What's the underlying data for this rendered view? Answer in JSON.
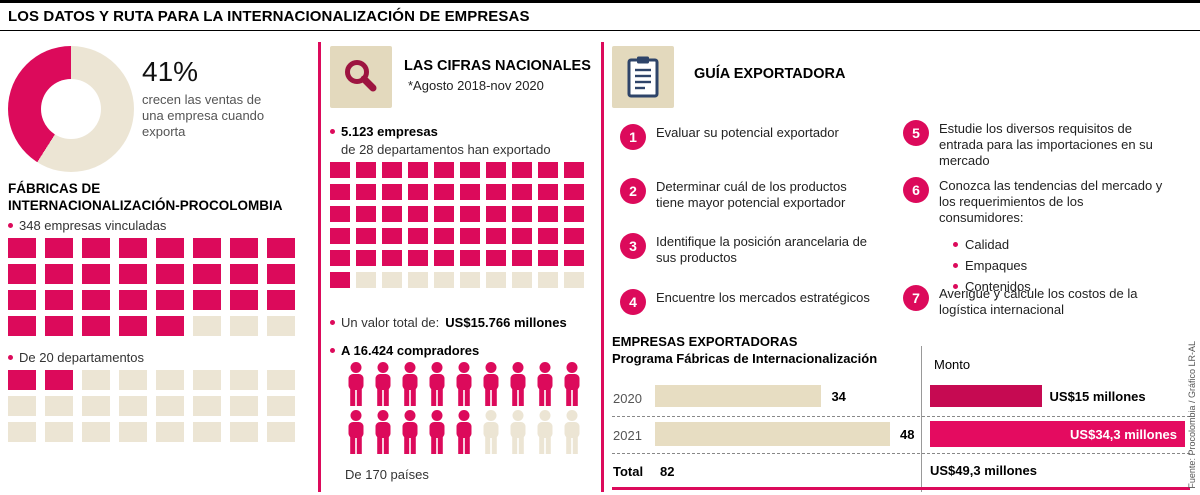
{
  "colors": {
    "pink": "#dc0a5b",
    "cream": "#ece5d4",
    "tan": "#e3d9bd",
    "tan-bar": "#e7ddc2",
    "bar-dark": "#c60a52",
    "bar-bright": "#e40b60",
    "navy": "#2e4469",
    "dark-red": "#9d1440"
  },
  "title": "LOS DATOS Y RUTA PARA LA INTERNACIONALIZACIÓN DE EMPRESAS",
  "left": {
    "donut": {
      "pct": 41,
      "pct_label": "41%",
      "caption": "crecen las ventas de\nuna empresa cuando\nexporta"
    },
    "section_title": "FÁBRICAS DE\nINTERNACIONALIZACIÓN-PROCOLOMBIA",
    "stat1": {
      "label": "348 empresas vinculadas",
      "waffle": {
        "cols": 8,
        "filled": 29,
        "total": 32
      }
    },
    "stat2": {
      "label": "De 20 departamentos",
      "waffle": {
        "cols": 8,
        "filled": 2,
        "total": 24
      }
    }
  },
  "middle": {
    "header": "LAS CIFRAS NACIONALES",
    "subheader": "*Agosto 2018-nov 2020",
    "stat1_bold": "5.123 empresas",
    "stat1_rest": "de 28 departamentos han exportado",
    "waffle": {
      "cols": 10,
      "filled": 51,
      "total": 60
    },
    "stat2_pre": "Un valor total de: ",
    "stat2_bold": "US$15.766 millones",
    "stat3": "A 16.424 compradores",
    "people": {
      "per_row": 9,
      "filled": 14,
      "total": 18
    },
    "footer": "De 170 países"
  },
  "right": {
    "header": "GUÍA EXPORTADORA",
    "steps": [
      {
        "n": "1",
        "text": "Evaluar su potencial exportador"
      },
      {
        "n": "2",
        "text": "Determinar cuál de los productos tiene mayor potencial exportador"
      },
      {
        "n": "3",
        "text": "Identifique la posición arancelaria de sus productos"
      },
      {
        "n": "4",
        "text": "Encuentre los mercados estratégicos"
      },
      {
        "n": "5",
        "text": "Estudie los diversos requisitos de entrada para las importaciones en su mercado"
      },
      {
        "n": "6",
        "text": "Conozca las tendencias del mercado y los requerimientos de los consumidores:",
        "bullets": [
          "Calidad",
          "Empaques",
          "Contenidos"
        ]
      },
      {
        "n": "7",
        "text": "Averigue y calcule los costos de la logística internacional"
      }
    ],
    "table": {
      "title1": "EMPRESAS EXPORTADORAS",
      "title2": "Programa Fábricas de Internacionalización",
      "monto_label": "Monto",
      "rows": [
        {
          "year": "2020",
          "count": 34,
          "count_label": "34",
          "monto_value": 15,
          "monto_label": "US$15 millones"
        },
        {
          "year": "2021",
          "count": 48,
          "count_label": "48",
          "monto_value": 34.3,
          "monto_label": "US$34,3 millones"
        }
      ],
      "total_label": "Total",
      "total_count": "82",
      "total_monto": "US$49,3 millones"
    }
  },
  "credit": "Fuente: Procolombia / Gráfico LR-AL",
  "chart_data": [
    {
      "type": "pie",
      "title": "41% crecen las ventas de una empresa cuando exporta",
      "labels": [
        "crecen",
        "resto"
      ],
      "values": [
        41,
        59
      ],
      "unit": "%"
    },
    {
      "type": "heatmap",
      "subtype": "waffle",
      "title": "348 empresas vinculadas",
      "filled": 29,
      "total": 32
    },
    {
      "type": "heatmap",
      "subtype": "waffle",
      "title": "De 20 departamentos",
      "filled": 2,
      "total": 24
    },
    {
      "type": "heatmap",
      "subtype": "waffle",
      "title": "5.123 empresas de 28 departamentos han exportado (Agosto 2018-nov 2020)",
      "filled": 51,
      "total": 60
    },
    {
      "type": "heatmap",
      "subtype": "pictogram",
      "title": "A 16.424 compradores de 170 países",
      "filled": 14,
      "total": 18
    },
    {
      "type": "bar",
      "title": "Empresas exportadoras - Programa Fábricas de Internacionalización",
      "categories": [
        "2020",
        "2021",
        "Total"
      ],
      "series": [
        {
          "name": "Empresas",
          "values": [
            34,
            48,
            82
          ]
        },
        {
          "name": "Monto (US$ millones)",
          "values": [
            15,
            34.3,
            49.3
          ]
        }
      ]
    }
  ]
}
